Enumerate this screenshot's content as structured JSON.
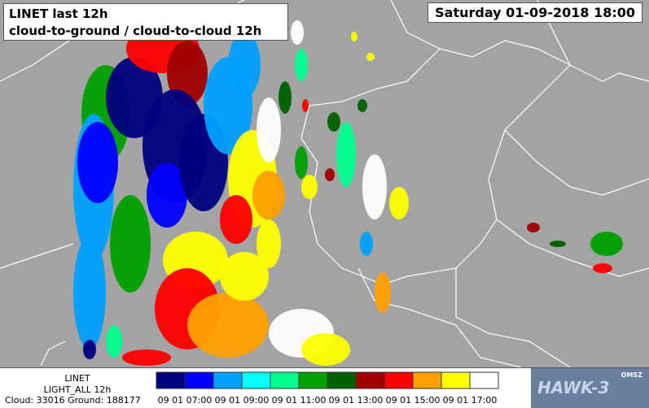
{
  "header": {
    "title": "LINET last 12h",
    "subtitle": "cloud-to-ground / cloud-to-cloud  12h",
    "datetime": "Saturday 01-09-2018 18:00"
  },
  "legend": {
    "network": "LINET",
    "product": "LIGHT_ALL 12h",
    "counts": "Cloud: 33016 Ground: 188177",
    "colors": [
      "#000080",
      "#0000ff",
      "#00a0ff",
      "#00ffff",
      "#00ff90",
      "#00a000",
      "#006000",
      "#a00000",
      "#ff0000",
      "#ffa000",
      "#ffff00",
      "#ffffff"
    ],
    "labels": [
      "09 01 07:00",
      "09 01 09:00",
      "09 01 11:00",
      "09 01 13:00",
      "09 01 15:00",
      "09 01 17:00"
    ]
  },
  "branding": {
    "logo": "HAWK-3",
    "agency": "OMSZ"
  }
}
